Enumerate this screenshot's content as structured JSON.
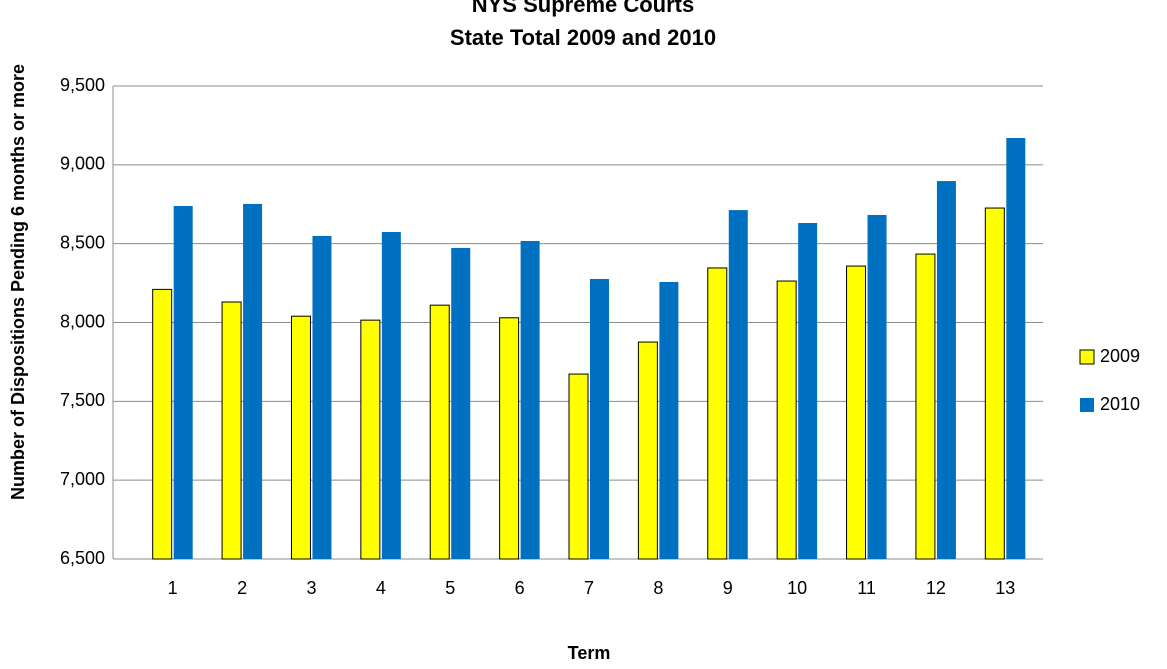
{
  "chart_data": {
    "type": "bar",
    "title": "NYS Supreme Courts",
    "subtitle": "State Total 2009 and 2010",
    "x_label": "Term",
    "y_label": "Number of Dispositions  Pending 6 months or more",
    "categories": [
      "1",
      "2",
      "3",
      "4",
      "5",
      "6",
      "7",
      "8",
      "9",
      "10",
      "11",
      "12",
      "13"
    ],
    "series": [
      {
        "name": "2009",
        "color": "#ffff00",
        "values": [
          8210,
          8130,
          8040,
          8015,
          8110,
          8030,
          7673,
          7876,
          8346,
          8263,
          8358,
          8434,
          8726
        ]
      },
      {
        "name": "2010",
        "color": "#0070c0",
        "values": [
          8739,
          8752,
          8549,
          8574,
          8473,
          8517,
          8276,
          8257,
          8713,
          8631,
          8682,
          8897,
          9170
        ]
      }
    ],
    "ylim": [
      6500,
      9500
    ],
    "yticks": [
      {
        "value": 6500,
        "label": "6,500"
      },
      {
        "value": 7000,
        "label": "7,000"
      },
      {
        "value": 7500,
        "label": "7,500"
      },
      {
        "value": 8000,
        "label": "8,000"
      },
      {
        "value": 8500,
        "label": "8,500"
      },
      {
        "value": 9000,
        "label": "9,000"
      },
      {
        "value": 9500,
        "label": "9,500"
      }
    ],
    "grid": true,
    "legend": "right"
  }
}
